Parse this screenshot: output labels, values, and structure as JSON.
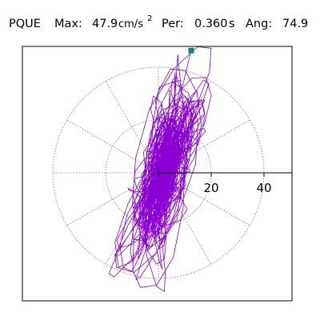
{
  "header": {
    "station": "PQUE",
    "max_label": "Max:",
    "max_value": "47.9",
    "max_unit": "cm/s",
    "max_unit_exp": "2",
    "per_label": "Per:",
    "per_value": "0.360",
    "per_unit": "s",
    "ang_label": "Ang:",
    "ang_value": "74.9"
  },
  "colors": {
    "trace": "#8a00d4",
    "max_marker": "#008c6e",
    "grid": "#777777",
    "axis": "#000000"
  },
  "chart_data": {
    "type": "scatter",
    "title": "",
    "xlabel": "",
    "ylabel": "",
    "radial_ticks": [
      20,
      40
    ],
    "radial_max": 50,
    "grid_circles": [
      20,
      40
    ],
    "spoke_angles_deg": [
      0,
      30,
      60,
      90,
      120,
      150,
      180,
      210,
      240,
      270,
      300,
      330
    ],
    "max_point": {
      "x": 12.4,
      "y": 46.3
    },
    "major_axis_angle_deg": 74.9,
    "major_extent": 46.5,
    "minor_extent": 11
  }
}
